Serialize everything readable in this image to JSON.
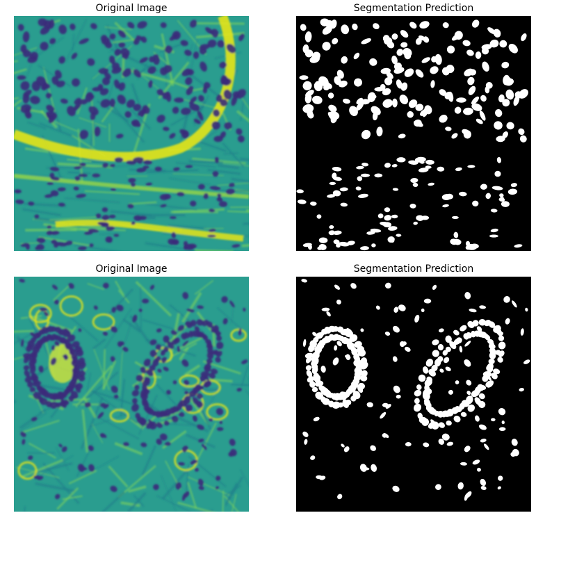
{
  "panels": [
    {
      "title": "Original Image",
      "kind": "histology",
      "variant": "dense-nest",
      "seed": 11
    },
    {
      "title": "Segmentation Prediction",
      "kind": "mask",
      "variant": "dense-nest",
      "seed": 11
    },
    {
      "title": "Original Image",
      "kind": "histology",
      "variant": "two-glands",
      "seed": 29
    },
    {
      "title": "Segmentation Prediction",
      "kind": "mask",
      "variant": "two-glands",
      "seed": 29
    }
  ],
  "colors": {
    "viridis_dark": "#3b2a7a",
    "viridis_mid": "#2a9d8f",
    "viridis_bright": "#e4e419",
    "mask_background": "#000000",
    "mask_foreground": "#ffffff"
  }
}
